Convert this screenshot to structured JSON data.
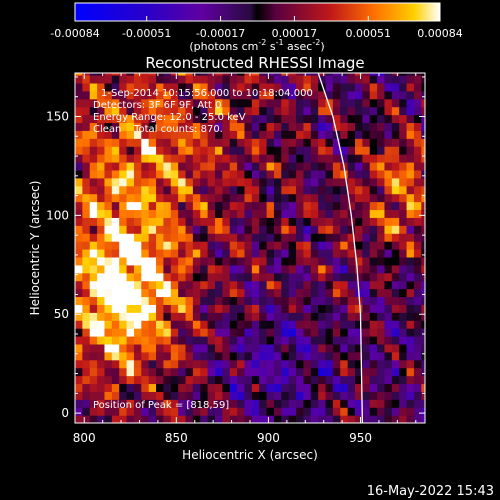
{
  "colorbar": {
    "tick_labels": [
      "-0.00084",
      "-0.00051",
      "-0.00017",
      "0.00017",
      "0.00051",
      "0.00084"
    ],
    "tick_values": [
      -0.00084,
      -0.00051,
      -0.00017,
      0.00017,
      0.00051,
      0.00084
    ],
    "range": [
      -0.00084,
      0.00084
    ],
    "units_prefix": "(photons cm",
    "units_exp1": "-2",
    "units_s": " s",
    "units_exp2": "-1",
    "units_asec": " asec",
    "units_suffix": ")"
  },
  "chart_data": {
    "type": "heatmap",
    "title": "Reconstructed RHESSI Image",
    "xlabel": "Heliocentric X (arcsec)",
    "ylabel": "Heliocentric Y (arcsec)",
    "xlim": [
      795,
      985
    ],
    "ylim": [
      -5,
      172
    ],
    "x_ticks": [
      800,
      850,
      900,
      950
    ],
    "y_ticks": [
      0,
      50,
      100,
      150
    ],
    "info_lines": [
      "1-Sep-2014 10:15:56.000 to 10:18:04.000",
      "Detectors: 3F 6F 9F, Att 0",
      "Energy Range: 12.0 - 25.0 keV",
      "Clean    Total counts: 870."
    ],
    "peak_text": "Position of Peak = [818,59]",
    "peak": [
      818,
      59
    ],
    "limb": {
      "x": [
        927,
        935,
        941,
        945,
        948,
        950,
        951
      ],
      "y": [
        172,
        150,
        125,
        100,
        75,
        50,
        -5
      ]
    },
    "colors": {
      "background": "#000000",
      "text": "#ffffff",
      "colorscale": [
        "#0000ff",
        "#2a00c8",
        "#6000a0",
        "#2a0a40",
        "#000000",
        "#5a0040",
        "#c01818",
        "#ff7000",
        "#ffd000",
        "#ffffff"
      ]
    }
  },
  "timestamp": "16-May-2022 15:43"
}
